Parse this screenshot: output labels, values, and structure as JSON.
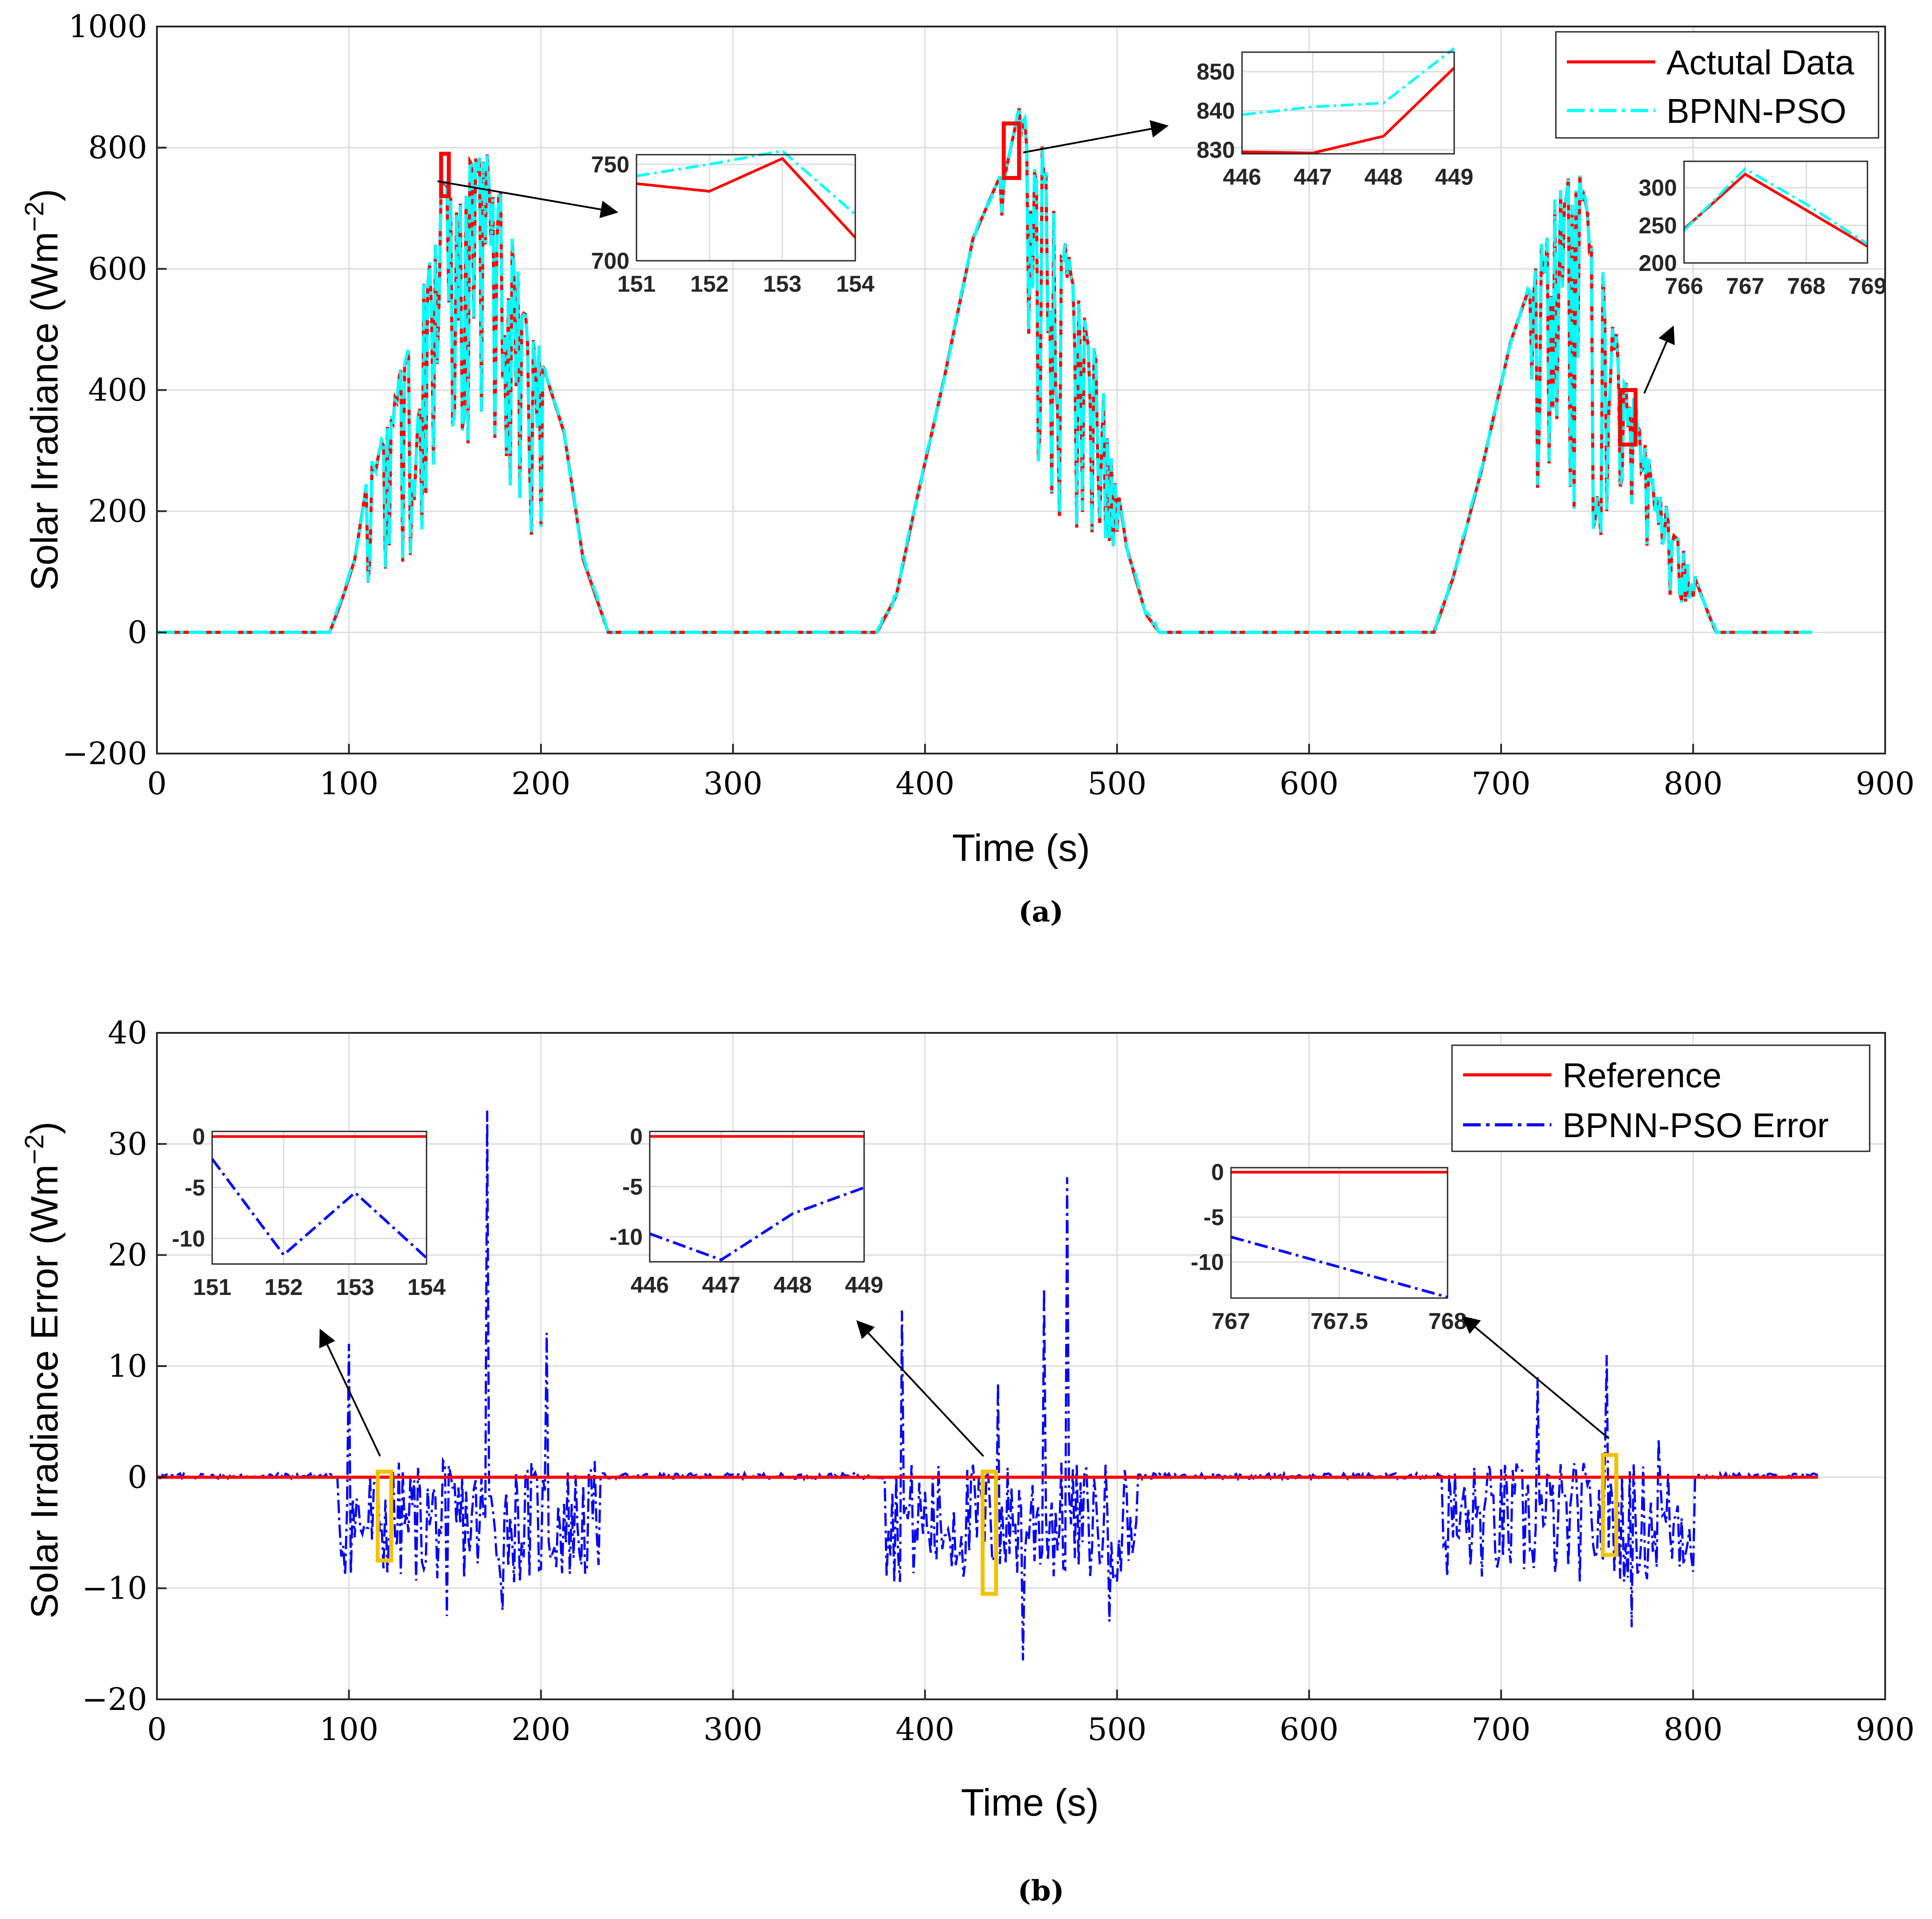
{
  "chart_data": [
    {
      "id": "a",
      "type": "line",
      "caption": "(a)",
      "xlabel": "Time (s)",
      "ylabel": "Solar Irradiance (Wm",
      "ylabel_sup": "−2",
      "ylabel_close": ")",
      "xlim": [
        0,
        900
      ],
      "ylim": [
        -200,
        1000
      ],
      "xticks": [
        0,
        100,
        200,
        300,
        400,
        500,
        600,
        700,
        800,
        900
      ],
      "yticks": [
        -200,
        0,
        200,
        400,
        600,
        800,
        1000
      ],
      "ytick_labels": [
        "−200",
        "0",
        "200",
        "400",
        "600",
        "800",
        "1000"
      ],
      "grid": true,
      "legend_position": "top-right",
      "series": [
        {
          "name": "Actutal Data",
          "color": "#ff0000",
          "style": "solid"
        },
        {
          "name": "BPNN-PSO",
          "color": "#00ffff",
          "style": "dashdot"
        }
      ],
      "envelope_points": [
        [
          0,
          0
        ],
        [
          90,
          0
        ],
        [
          97,
          60
        ],
        [
          103,
          120
        ],
        [
          110,
          260
        ],
        [
          118,
          320
        ],
        [
          126,
          420
        ],
        [
          134,
          520
        ],
        [
          141,
          600
        ],
        [
          150,
          740
        ],
        [
          160,
          770
        ],
        [
          170,
          800
        ],
        [
          180,
          720
        ],
        [
          190,
          560
        ],
        [
          200,
          450
        ],
        [
          212,
          330
        ],
        [
          222,
          120
        ],
        [
          235,
          0
        ],
        [
          375,
          0
        ],
        [
          385,
          60
        ],
        [
          395,
          210
        ],
        [
          410,
          420
        ],
        [
          425,
          650
        ],
        [
          440,
          760
        ],
        [
          448,
          850
        ],
        [
          456,
          840
        ],
        [
          470,
          700
        ],
        [
          490,
          450
        ],
        [
          505,
          140
        ],
        [
          515,
          30
        ],
        [
          522,
          0
        ],
        [
          665,
          0
        ],
        [
          675,
          90
        ],
        [
          690,
          270
        ],
        [
          705,
          480
        ],
        [
          718,
          600
        ],
        [
          728,
          700
        ],
        [
          740,
          790
        ],
        [
          755,
          560
        ],
        [
          768,
          400
        ],
        [
          780,
          250
        ],
        [
          795,
          140
        ],
        [
          808,
          30
        ],
        [
          812,
          0
        ],
        [
          862,
          0
        ]
      ],
      "insets": [
        {
          "name": "inset-151-154",
          "xlim": [
            151,
            154
          ],
          "ylim": [
            700,
            755
          ],
          "xticks": [
            151,
            152,
            153,
            154
          ],
          "yticks": [
            700,
            750
          ],
          "actual": [
            [
              151,
              740
            ],
            [
              152,
              736
            ],
            [
              153,
              753
            ],
            [
              154,
              712
            ]
          ],
          "predicted": [
            [
              151,
              744
            ],
            [
              152,
              750
            ],
            [
              153,
              757
            ],
            [
              154,
              724
            ]
          ]
        },
        {
          "name": "inset-446-449",
          "xlim": [
            446,
            449
          ],
          "ylim": [
            829,
            855
          ],
          "xticks": [
            446,
            447,
            448,
            449
          ],
          "yticks": [
            830,
            840,
            850
          ],
          "actual": [
            [
              446,
              829.5
            ],
            [
              447,
              829.2
            ],
            [
              448,
              833.5
            ],
            [
              449,
              851
            ]
          ],
          "predicted": [
            [
              446,
              839
            ],
            [
              447,
              841
            ],
            [
              448,
              842
            ],
            [
              449,
              856
            ]
          ]
        },
        {
          "name": "inset-766-769",
          "xlim": [
            766,
            769
          ],
          "ylim": [
            200,
            335
          ],
          "xticks": [
            766,
            767,
            768,
            769
          ],
          "yticks": [
            200,
            250,
            300
          ],
          "actual": [
            [
              766,
              245
            ],
            [
              767,
              318
            ],
            [
              768,
              270
            ],
            [
              769,
              222
            ]
          ],
          "predicted": [
            [
              766,
              243
            ],
            [
              767,
              325
            ],
            [
              768,
              278
            ],
            [
              769,
              225
            ]
          ]
        }
      ],
      "highlight_boxes": [
        [
          148,
          152,
          720,
          790
        ],
        [
          441,
          449,
          750,
          840
        ],
        [
          762,
          770,
          310,
          400
        ]
      ]
    },
    {
      "id": "b",
      "type": "line",
      "caption": "(b)",
      "xlabel": "Time (s)",
      "ylabel": "Solar Irradiance Error (Wm",
      "ylabel_sup": "−2",
      "ylabel_close": ")",
      "xlim": [
        0,
        900
      ],
      "ylim": [
        -20,
        40
      ],
      "xticks": [
        0,
        100,
        200,
        300,
        400,
        500,
        600,
        700,
        800,
        900
      ],
      "yticks": [
        -20,
        -10,
        0,
        10,
        20,
        30,
        40
      ],
      "ytick_labels": [
        "−20",
        "−10",
        "0",
        "10",
        "20",
        "30",
        "40"
      ],
      "grid": true,
      "legend_position": "top-right",
      "series": [
        {
          "name": "Reference",
          "color": "#ff0000",
          "style": "solid"
        },
        {
          "name": "BPNN-PSO Error",
          "color": "#0000ff",
          "style": "dashdot"
        }
      ],
      "error_spikes": [
        [
          100,
          12
        ],
        [
          172,
          33
        ],
        [
          203,
          13
        ],
        [
          388,
          15
        ],
        [
          438,
          8.5
        ],
        [
          462,
          17
        ],
        [
          474,
          27
        ],
        [
          719,
          9
        ],
        [
          755,
          11
        ],
        [
          782,
          3.5
        ],
        [
          151,
          -12.5
        ],
        [
          180,
          -12
        ],
        [
          451,
          -16.5
        ],
        [
          496,
          -13
        ],
        [
          768,
          -13.5
        ]
      ],
      "insets": [
        {
          "name": "inset-151-154-error",
          "xlim": [
            151,
            154
          ],
          "ylim": [
            -12.5,
            0.5
          ],
          "xticks": [
            151,
            152,
            153,
            154
          ],
          "yticks": [
            -10,
            -5,
            0
          ],
          "reference": [
            [
              151,
              0
            ],
            [
              154,
              0
            ]
          ],
          "error": [
            [
              151,
              -2.2
            ],
            [
              152,
              -11.6
            ],
            [
              153,
              -5.5
            ],
            [
              154,
              -11.9
            ]
          ]
        },
        {
          "name": "inset-446-449-error",
          "xlim": [
            446,
            449
          ],
          "ylim": [
            -12.5,
            0.5
          ],
          "xticks": [
            446,
            447,
            448,
            449
          ],
          "yticks": [
            -10,
            -5,
            0
          ],
          "reference": [
            [
              446,
              0
            ],
            [
              449,
              0
            ]
          ],
          "error": [
            [
              446,
              -9.7
            ],
            [
              447,
              -12.3
            ],
            [
              448,
              -7.7
            ],
            [
              449,
              -5.1
            ]
          ]
        },
        {
          "name": "inset-767-768-error",
          "xlim": [
            767,
            768
          ],
          "ylim": [
            -14,
            0.5
          ],
          "xticks": [
            767,
            767.5,
            768
          ],
          "yticks": [
            -10,
            -5,
            0
          ],
          "reference": [
            [
              767,
              0
            ],
            [
              768,
              0
            ]
          ],
          "error": [
            [
              767,
              -7.2
            ],
            [
              768,
              -13.9
            ]
          ]
        }
      ],
      "highlight_boxes": [
        [
          115,
          122,
          -7.5,
          0.5
        ],
        [
          430,
          437,
          -10.5,
          0.5
        ],
        [
          753,
          760,
          -7,
          2
        ]
      ]
    }
  ]
}
